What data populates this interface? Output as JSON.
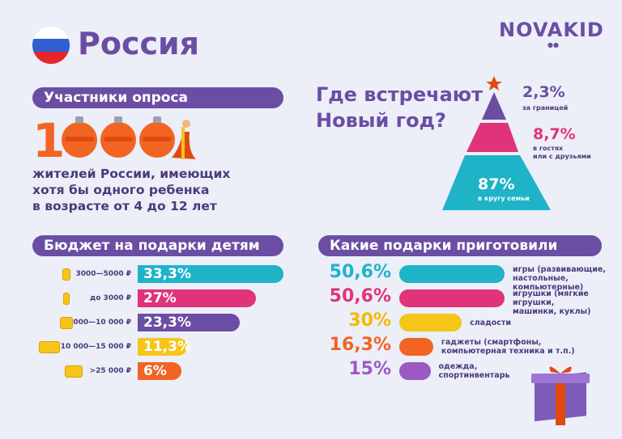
{
  "header": {
    "country": "Россия",
    "logo": "NOVAKID",
    "flag_colors": [
      "#FFFFFF",
      "#2F5FD0",
      "#E4252B"
    ]
  },
  "participants": {
    "title": "Участники опроса",
    "count": "1000",
    "description": [
      "жителей России, имеющих",
      "хотя бы одного ребенка",
      "в возрасте от 4 до 12 лет"
    ]
  },
  "new_year": {
    "title": [
      "Где встречают",
      "Новый год?"
    ]
  },
  "budget": {
    "title": "Бюджет на подарки детям"
  },
  "gifts": {
    "title": "Какие подарки приготовили"
  },
  "chart_data": [
    {
      "type": "pie",
      "title": "Где встречают Новый год?",
      "categories": [
        "за границей",
        "в гостях или с друзьями",
        "в кругу семьи"
      ],
      "values": [
        2.3,
        8.7,
        87
      ],
      "labels": [
        "2,3%",
        "8,7%",
        "87%"
      ],
      "label_lines": [
        [
          "за границей"
        ],
        [
          "в гостях",
          "или с друзьями"
        ],
        [
          "в кругу семьи"
        ]
      ],
      "colors": [
        "#6B4EA3",
        "#E0337A",
        "#1FB3C8"
      ]
    },
    {
      "type": "bar",
      "title": "Бюджет на подарки детям",
      "categories": [
        "3000—5000 ₽",
        "до 3000 ₽",
        "5000—10 000 ₽",
        "10 000—15 000 ₽",
        ">25 000 ₽"
      ],
      "values": [
        33.3,
        27,
        23.3,
        11.3,
        6
      ],
      "labels": [
        "33,3%",
        "27%",
        "23,3%",
        "11,3%",
        "6%"
      ],
      "colors": [
        "#1FB3C8",
        "#E0337A",
        "#6B4EA3",
        "#F5C518",
        "#F26422"
      ]
    },
    {
      "type": "bar",
      "title": "Какие подарки приготовили",
      "categories": [
        "игры (развивающие, настольные, компьютерные)",
        "игрушки (мягкие игрушки, машинки, куклы)",
        "сладости",
        "гаджеты (смартфоны, компьютерная техника и т.п.)",
        "одежда, спортинвентарь"
      ],
      "category_lines": [
        [
          "игры (развивающие,",
          "настольные, компьютерные)"
        ],
        [
          "игрушки (мягкие игрушки,",
          "машинки, куклы)"
        ],
        [
          "сладости"
        ],
        [
          "гаджеты (смартфоны,",
          "компьютерная техника и т.п.)"
        ],
        [
          "одежда,",
          "спортинвентарь"
        ]
      ],
      "values": [
        50.6,
        50.6,
        30,
        16.3,
        15
      ],
      "labels": [
        "50,6%",
        "50,6%",
        "30%",
        "16,3%",
        "15%"
      ],
      "colors": [
        "#1FB3C8",
        "#E0337A",
        "#F5C518",
        "#F26422",
        "#9B59C4"
      ]
    }
  ]
}
